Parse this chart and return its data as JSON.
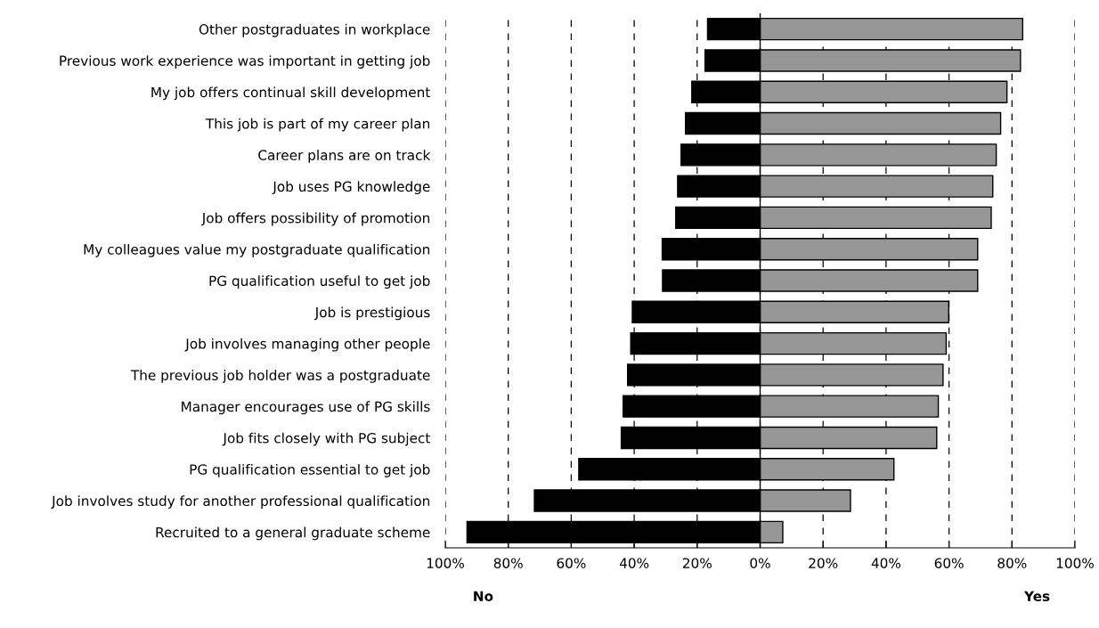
{
  "chart_data": {
    "type": "bar",
    "orientation": "horizontal",
    "categories": [
      "Other postgraduates in workplace",
      "Previous work experience was important in getting job",
      "My job offers continual skill development",
      "This job is part of my career plan",
      "Career plans are on track",
      "Job uses PG knowledge",
      "Job offers possibility of promotion",
      "My colleagues value my postgraduate qualification",
      "PG qualification useful to get job",
      "Job is prestigious",
      "Job involves managing other people",
      "The previous job holder was a postgraduate",
      "Manager encourages use of PG skills",
      "Job fits closely with PG subject",
      "PG qualification essential to get job",
      "Job involves study for another professional qualification",
      "Recruited to a general graduate scheme"
    ],
    "series": [
      {
        "name": "No",
        "color": "#000000",
        "values": [
          -16.7,
          -17.5,
          -21.7,
          -23.7,
          -25.1,
          -26.2,
          -26.8,
          -31.1,
          -31.0,
          -40.6,
          -41.1,
          -42.1,
          -43.5,
          -44.1,
          -57.6,
          -71.7,
          -93.1
        ]
      },
      {
        "name": "Yes",
        "color": "#969696",
        "values": [
          83.4,
          82.7,
          78.4,
          76.4,
          75.0,
          73.9,
          73.4,
          69.1,
          69.1,
          59.9,
          59.1,
          58.1,
          56.6,
          56.1,
          42.5,
          28.7,
          7.2
        ]
      }
    ],
    "xlim": [
      -100,
      100
    ],
    "xticks": [
      {
        "value": -100,
        "label": "100%"
      },
      {
        "value": -80,
        "label": "80%"
      },
      {
        "value": -60,
        "label": "60%"
      },
      {
        "value": -40,
        "label": "40%"
      },
      {
        "value": -20,
        "label": "20%"
      },
      {
        "value": 0,
        "label": "0%"
      },
      {
        "value": 20,
        "label": "20%"
      },
      {
        "value": 40,
        "label": "40%"
      },
      {
        "value": 60,
        "label": "60%"
      },
      {
        "value": 80,
        "label": "80%"
      },
      {
        "value": 100,
        "label": "100%"
      }
    ],
    "stacked": true,
    "grid": "x",
    "legend": false
  }
}
